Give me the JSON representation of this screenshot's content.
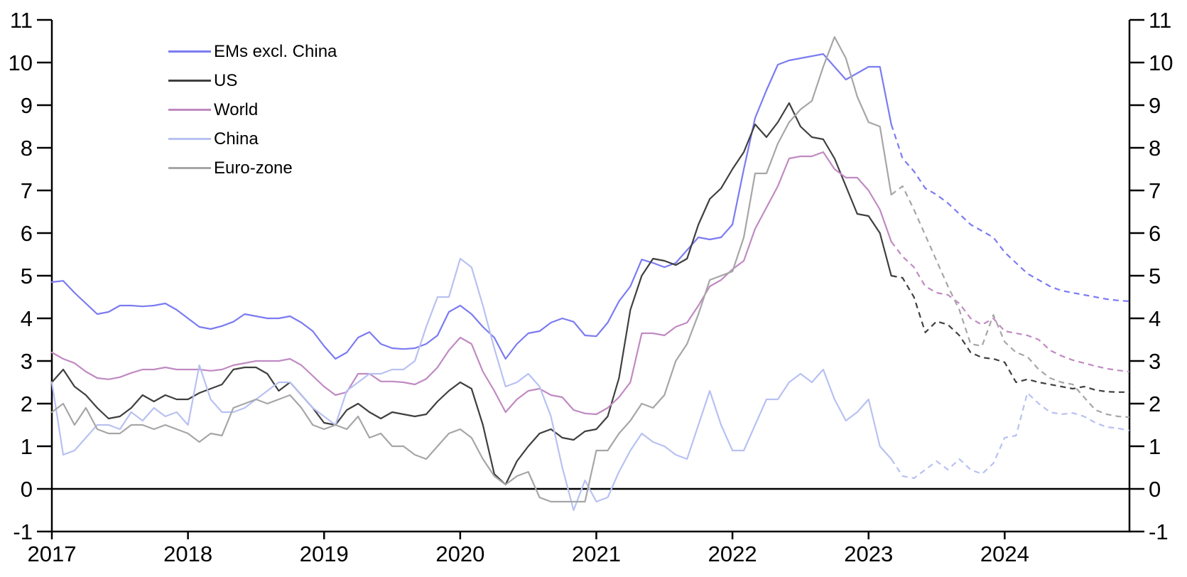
{
  "page": {
    "background_color": "#ffffff"
  },
  "chart_data": {
    "type": "line",
    "title": "",
    "xlabel": "",
    "ylabel": "",
    "x_start": "2017-01",
    "x_end": "2024-12",
    "x_frequency": "monthly",
    "x_tick_labels": [
      "2017",
      "2018",
      "2019",
      "2020",
      "2021",
      "2022",
      "2023",
      "2024"
    ],
    "y_ticks": [
      -1,
      0,
      1,
      2,
      3,
      4,
      5,
      6,
      7,
      8,
      9,
      10,
      11
    ],
    "ylim": [
      -1,
      11
    ],
    "dual_y_axis": true,
    "grid": false,
    "zero_line": true,
    "legend_position": "top-left",
    "solid_until_index": 74,
    "dashed_after": true,
    "axis_color": "#000000",
    "series": [
      {
        "name": "EMs excl. China",
        "color": "#7b7bf2",
        "values": [
          4.85,
          4.88,
          4.6,
          4.35,
          4.1,
          4.15,
          4.3,
          4.3,
          4.28,
          4.3,
          4.35,
          4.2,
          4.0,
          3.8,
          3.75,
          3.82,
          3.92,
          4.1,
          4.05,
          4.0,
          4.0,
          4.05,
          3.9,
          3.7,
          3.35,
          3.05,
          3.2,
          3.55,
          3.68,
          3.4,
          3.3,
          3.28,
          3.3,
          3.4,
          3.6,
          4.15,
          4.3,
          4.1,
          3.8,
          3.55,
          3.05,
          3.4,
          3.65,
          3.7,
          3.9,
          4.0,
          3.92,
          3.6,
          3.58,
          3.9,
          4.4,
          4.75,
          5.38,
          5.3,
          5.2,
          5.3,
          5.6,
          5.9,
          5.85,
          5.9,
          6.2,
          7.5,
          8.7,
          9.35,
          9.95,
          10.05,
          10.1,
          10.15,
          10.2,
          9.9,
          9.6,
          9.75,
          9.9,
          9.9,
          8.55,
          7.75,
          7.45,
          7.05,
          6.9,
          6.7,
          6.45,
          6.2,
          6.05,
          5.9,
          5.55,
          5.3,
          5.05,
          4.9,
          4.75,
          4.65,
          4.6,
          4.55,
          4.5,
          4.45,
          4.42,
          4.4
        ]
      },
      {
        "name": "US",
        "color": "#3f3f3f",
        "values": [
          2.5,
          2.8,
          2.4,
          2.2,
          1.9,
          1.65,
          1.7,
          1.9,
          2.2,
          2.05,
          2.2,
          2.1,
          2.1,
          2.25,
          2.35,
          2.45,
          2.8,
          2.85,
          2.85,
          2.7,
          2.3,
          2.5,
          2.2,
          1.9,
          1.55,
          1.5,
          1.85,
          2.0,
          1.8,
          1.65,
          1.8,
          1.75,
          1.7,
          1.75,
          2.05,
          2.3,
          2.5,
          2.35,
          1.5,
          0.35,
          0.1,
          0.65,
          1.0,
          1.3,
          1.4,
          1.2,
          1.15,
          1.35,
          1.4,
          1.7,
          2.6,
          4.2,
          5.0,
          5.4,
          5.35,
          5.25,
          5.4,
          6.2,
          6.8,
          7.05,
          7.5,
          7.9,
          8.55,
          8.25,
          8.6,
          9.05,
          8.5,
          8.25,
          8.2,
          7.75,
          7.1,
          6.45,
          6.4,
          6.0,
          5.0,
          4.95,
          4.5,
          3.67,
          3.93,
          3.85,
          3.6,
          3.2,
          3.08,
          3.05,
          2.97,
          2.5,
          2.57,
          2.5,
          2.45,
          2.4,
          2.35,
          2.4,
          2.32,
          2.28,
          2.27,
          2.27
        ]
      },
      {
        "name": "World",
        "color": "#c08ac2",
        "values": [
          3.2,
          3.05,
          2.95,
          2.75,
          2.6,
          2.57,
          2.62,
          2.72,
          2.8,
          2.8,
          2.85,
          2.8,
          2.8,
          2.8,
          2.77,
          2.8,
          2.9,
          2.95,
          3.0,
          3.0,
          3.0,
          3.05,
          2.9,
          2.65,
          2.4,
          2.2,
          2.27,
          2.7,
          2.7,
          2.52,
          2.52,
          2.5,
          2.45,
          2.58,
          2.85,
          3.25,
          3.55,
          3.4,
          2.75,
          2.3,
          1.8,
          2.1,
          2.3,
          2.35,
          2.2,
          2.15,
          1.85,
          1.77,
          1.75,
          1.9,
          2.15,
          2.5,
          3.65,
          3.65,
          3.6,
          3.8,
          3.9,
          4.3,
          4.75,
          4.9,
          5.15,
          5.35,
          6.1,
          6.6,
          7.1,
          7.75,
          7.8,
          7.8,
          7.9,
          7.5,
          7.3,
          7.3,
          7.0,
          6.55,
          5.8,
          5.45,
          5.2,
          4.75,
          4.6,
          4.55,
          4.35,
          4.0,
          3.85,
          4.0,
          3.7,
          3.65,
          3.6,
          3.5,
          3.25,
          3.12,
          3.02,
          2.95,
          2.88,
          2.82,
          2.78,
          2.75
        ]
      },
      {
        "name": "China",
        "color": "#b8c1f2",
        "values": [
          2.5,
          0.8,
          0.9,
          1.2,
          1.5,
          1.5,
          1.4,
          1.8,
          1.6,
          1.9,
          1.7,
          1.8,
          1.5,
          2.9,
          2.1,
          1.8,
          1.8,
          1.9,
          2.1,
          2.3,
          2.5,
          2.5,
          2.2,
          1.9,
          1.7,
          1.5,
          2.3,
          2.5,
          2.7,
          2.7,
          2.8,
          2.8,
          3.0,
          3.8,
          4.5,
          4.5,
          5.4,
          5.2,
          4.3,
          3.3,
          2.4,
          2.5,
          2.7,
          2.4,
          1.7,
          0.5,
          -0.5,
          0.2,
          -0.3,
          -0.2,
          0.4,
          0.9,
          1.3,
          1.1,
          1.0,
          0.8,
          0.7,
          1.5,
          2.3,
          1.5,
          0.9,
          0.9,
          1.5,
          2.1,
          2.1,
          2.5,
          2.7,
          2.5,
          2.8,
          2.1,
          1.6,
          1.8,
          2.1,
          1.0,
          0.7,
          0.3,
          0.25,
          0.45,
          0.65,
          0.45,
          0.7,
          0.45,
          0.35,
          0.6,
          1.2,
          1.25,
          2.25,
          2.0,
          1.8,
          1.75,
          1.78,
          1.7,
          1.55,
          1.45,
          1.42,
          1.37
        ]
      },
      {
        "name": "Euro-zone",
        "color": "#a6a6a6",
        "values": [
          1.8,
          2.0,
          1.5,
          1.9,
          1.4,
          1.3,
          1.3,
          1.5,
          1.5,
          1.4,
          1.5,
          1.4,
          1.3,
          1.1,
          1.3,
          1.25,
          1.9,
          2.0,
          2.1,
          2.0,
          2.1,
          2.2,
          1.9,
          1.5,
          1.4,
          1.5,
          1.4,
          1.7,
          1.2,
          1.3,
          1.0,
          1.0,
          0.8,
          0.7,
          1.0,
          1.3,
          1.4,
          1.2,
          0.7,
          0.3,
          0.1,
          0.3,
          0.4,
          -0.2,
          -0.3,
          -0.3,
          -0.3,
          -0.3,
          0.9,
          0.9,
          1.3,
          1.6,
          2.0,
          1.9,
          2.2,
          3.0,
          3.4,
          4.1,
          4.9,
          5.0,
          5.1,
          5.9,
          7.4,
          7.4,
          8.1,
          8.6,
          8.9,
          9.1,
          9.9,
          10.6,
          10.1,
          9.2,
          8.6,
          8.5,
          6.9,
          7.1,
          6.55,
          5.95,
          5.35,
          4.75,
          4.2,
          3.4,
          3.35,
          4.08,
          3.45,
          3.2,
          3.1,
          2.8,
          2.6,
          2.5,
          2.45,
          2.15,
          1.85,
          1.75,
          1.7,
          1.68
        ]
      }
    ]
  }
}
